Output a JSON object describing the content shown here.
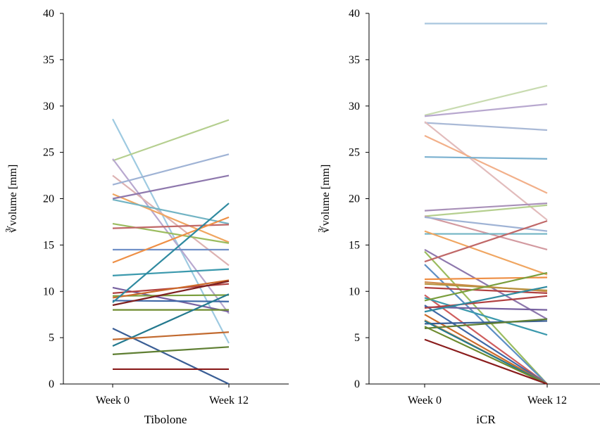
{
  "chart_data": [
    {
      "type": "line",
      "title": "Tibolone",
      "ylabel": "∛volume [mm]",
      "categories": [
        "Week 0",
        "Week 12"
      ],
      "ylim": [
        0,
        40
      ],
      "yticks": [
        0,
        5,
        10,
        15,
        20,
        25,
        30,
        35,
        40
      ],
      "series": [
        {
          "values": [
            28.6,
            4.4
          ],
          "color": "#9ecae1"
        },
        {
          "values": [
            24.1,
            28.5
          ],
          "color": "#b5cf8f"
        },
        {
          "values": [
            24.3,
            7.6
          ],
          "color": "#b8a8cf"
        },
        {
          "values": [
            22.5,
            12.8
          ],
          "color": "#ddb2b2"
        },
        {
          "values": [
            21.5,
            24.8
          ],
          "color": "#9fb3d5"
        },
        {
          "values": [
            20.5,
            15.3
          ],
          "color": "#f0a661"
        },
        {
          "values": [
            20.0,
            22.5
          ],
          "color": "#8e78ad"
        },
        {
          "values": [
            19.9,
            17.3
          ],
          "color": "#72b4c4"
        },
        {
          "values": [
            17.3,
            15.2
          ],
          "color": "#9bbc5f"
        },
        {
          "values": [
            16.8,
            17.2
          ],
          "color": "#c06868"
        },
        {
          "values": [
            14.5,
            14.5
          ],
          "color": "#7090c8"
        },
        {
          "values": [
            13.1,
            18.0
          ],
          "color": "#ee8f45"
        },
        {
          "values": [
            11.7,
            12.4
          ],
          "color": "#3b99ad"
        },
        {
          "values": [
            10.4,
            7.8
          ],
          "color": "#7761a0"
        },
        {
          "values": [
            9.8,
            10.8
          ],
          "color": "#b04040"
        },
        {
          "values": [
            9.5,
            9.6
          ],
          "color": "#7a9e3c"
        },
        {
          "values": [
            9.3,
            11.2
          ],
          "color": "#cc6a2a"
        },
        {
          "values": [
            9.0,
            8.9
          ],
          "color": "#3f68a6"
        },
        {
          "values": [
            8.8,
            19.5
          ],
          "color": "#2f8aa0"
        },
        {
          "values": [
            8.5,
            11.1
          ],
          "color": "#7d1f1f"
        },
        {
          "values": [
            8.0,
            8.0
          ],
          "color": "#6e8b2f"
        },
        {
          "values": [
            6.0,
            0.0
          ],
          "color": "#3a5e95"
        },
        {
          "values": [
            4.1,
            9.7
          ],
          "color": "#24798e"
        },
        {
          "values": [
            4.8,
            5.6
          ],
          "color": "#c26a2f"
        },
        {
          "values": [
            3.2,
            4.0
          ],
          "color": "#5f7f33"
        },
        {
          "values": [
            1.6,
            1.6
          ],
          "color": "#8a1c1c"
        }
      ]
    },
    {
      "type": "line",
      "title": "iCR",
      "ylabel": "∛volume [mm]",
      "categories": [
        "Week 0",
        "Week 12"
      ],
      "ylim": [
        0,
        40
      ],
      "yticks": [
        0,
        5,
        10,
        15,
        20,
        25,
        30,
        35,
        40
      ],
      "series": [
        {
          "values": [
            38.9,
            38.9
          ],
          "color": "#a9c6de"
        },
        {
          "values": [
            29.0,
            32.2
          ],
          "color": "#c8dbb0"
        },
        {
          "values": [
            28.9,
            30.2
          ],
          "color": "#b8a8cf"
        },
        {
          "values": [
            28.2,
            27.4
          ],
          "color": "#a9b9d6"
        },
        {
          "values": [
            28.3,
            17.7
          ],
          "color": "#e2bcbc"
        },
        {
          "values": [
            26.8,
            20.6
          ],
          "color": "#f2b08a"
        },
        {
          "values": [
            24.5,
            24.3
          ],
          "color": "#7ab0cf"
        },
        {
          "values": [
            18.7,
            19.5
          ],
          "color": "#a890b8"
        },
        {
          "values": [
            18.1,
            19.3
          ],
          "color": "#b5cf8f"
        },
        {
          "values": [
            18.1,
            14.5
          ],
          "color": "#d39aa0"
        },
        {
          "values": [
            18.0,
            16.5
          ],
          "color": "#9fb3d5"
        },
        {
          "values": [
            16.2,
            16.2
          ],
          "color": "#72b4c4"
        },
        {
          "values": [
            16.5,
            11.8
          ],
          "color": "#f0a661"
        },
        {
          "values": [
            14.5,
            7.0
          ],
          "color": "#8e78ad"
        },
        {
          "values": [
            14.3,
            0.0
          ],
          "color": "#9bbc5f"
        },
        {
          "values": [
            13.2,
            17.6
          ],
          "color": "#c06868"
        },
        {
          "values": [
            12.9,
            0.0
          ],
          "color": "#5d8fc4"
        },
        {
          "values": [
            11.3,
            11.5
          ],
          "color": "#ee8f45"
        },
        {
          "values": [
            11.0,
            10.0
          ],
          "color": "#d08a4a"
        },
        {
          "values": [
            10.8,
            10.1
          ],
          "color": "#b89340"
        },
        {
          "values": [
            10.4,
            9.8
          ],
          "color": "#b04040"
        },
        {
          "values": [
            9.6,
            0.0
          ],
          "color": "#cf5e5e"
        },
        {
          "values": [
            9.3,
            5.3
          ],
          "color": "#3b99ad"
        },
        {
          "values": [
            9.0,
            12.0
          ],
          "color": "#7a9e3c"
        },
        {
          "values": [
            8.3,
            8.0
          ],
          "color": "#7761a0"
        },
        {
          "values": [
            8.5,
            0.0
          ],
          "color": "#3f68a6"
        },
        {
          "values": [
            8.2,
            9.5
          ],
          "color": "#b04040"
        },
        {
          "values": [
            7.8,
            10.5
          ],
          "color": "#2f8aa0"
        },
        {
          "values": [
            7.5,
            0.0
          ],
          "color": "#cc6a2a"
        },
        {
          "values": [
            6.9,
            0.0
          ],
          "color": "#e89a55"
        },
        {
          "values": [
            6.5,
            6.8
          ],
          "color": "#3a5e95"
        },
        {
          "values": [
            6.8,
            0.0
          ],
          "color": "#24798e"
        },
        {
          "values": [
            6.2,
            0.0
          ],
          "color": "#6e8b2f"
        },
        {
          "values": [
            6.0,
            7.0
          ],
          "color": "#5f7f33"
        },
        {
          "values": [
            4.8,
            0.0
          ],
          "color": "#8a1c1c"
        }
      ]
    }
  ]
}
